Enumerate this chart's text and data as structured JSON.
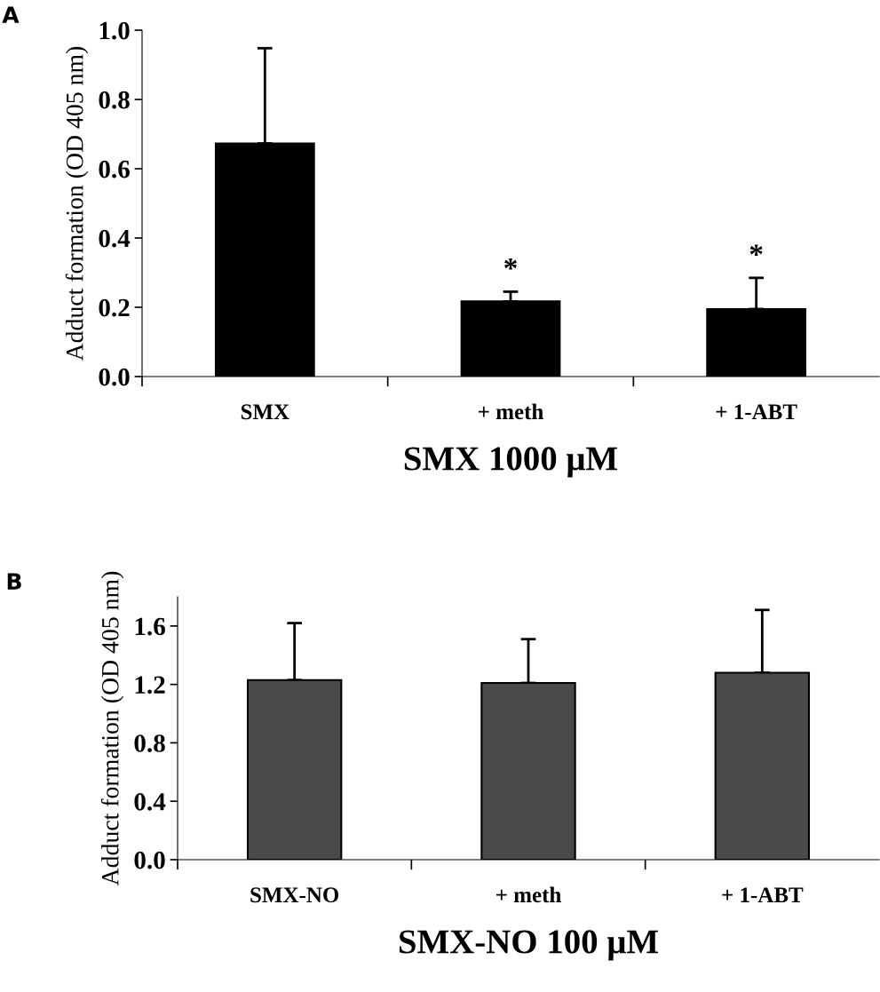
{
  "chart_data": [
    {
      "type": "bar",
      "title": "A",
      "categories": [
        "SMX",
        "+ meth",
        "+ 1-ABT"
      ],
      "values": [
        0.673,
        0.217,
        0.195
      ],
      "errors": [
        0.275,
        0.028,
        0.09
      ],
      "color": "#000000",
      "xlabel": "SMX 1000 μM",
      "ylabel": "Adduct formation (OD 405 nm)",
      "ylim": [
        0,
        1.0
      ],
      "yticks": [
        {
          "value": 0,
          "label": "0.0"
        },
        {
          "value": 0.2,
          "label": "0.2"
        },
        {
          "value": 0.4,
          "label": "0.4"
        },
        {
          "value": 0.6,
          "label": "0.6"
        },
        {
          "value": 0.8,
          "label": "0.8"
        },
        {
          "value": 1.0,
          "label": "1.0"
        }
      ],
      "grid": false,
      "legend": false,
      "annotations": [
        {
          "text": "*",
          "x": "+ meth",
          "y": 0.245
        },
        {
          "text": "*",
          "x": "+ 1-ABT",
          "y": 0.285
        }
      ]
    },
    {
      "type": "bar",
      "title": "B",
      "categories": [
        "SMX-NO",
        "+ meth",
        "+ 1-ABT"
      ],
      "values": [
        1.23,
        1.21,
        1.28
      ],
      "errors": [
        0.39,
        0.3,
        0.43
      ],
      "color": "#4a4a4a",
      "xlabel": "SMX-NO 100 μM",
      "ylabel": "Adduct formation (OD 405 nm)",
      "ylim": [
        0,
        1.8
      ],
      "yticks": [
        {
          "value": 0,
          "label": "0.0"
        },
        {
          "value": 0.4,
          "label": "0.4"
        },
        {
          "value": 0.8,
          "label": "0.8"
        },
        {
          "value": 1.2,
          "label": "1.2"
        },
        {
          "value": 1.6,
          "label": "1.6"
        }
      ],
      "grid": false,
      "legend": false
    }
  ]
}
